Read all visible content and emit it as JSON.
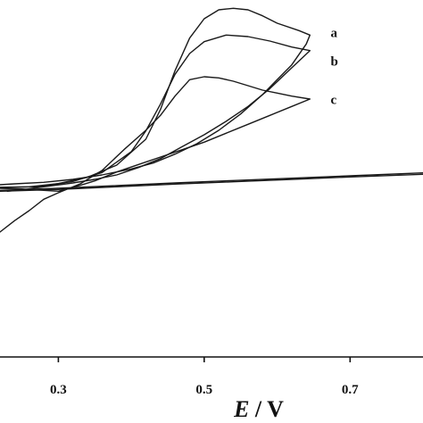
{
  "chart_data": {
    "type": "line",
    "title": "",
    "xlabel_italic": "E",
    "xlabel_unit": " / V",
    "ylabel": "",
    "xlim": [
      0.22,
      0.8
    ],
    "ylim": [
      -0.2,
      1.0
    ],
    "x_ticks": [
      {
        "value": 0.3,
        "label": "0.3"
      },
      {
        "value": 0.5,
        "label": "0.5"
      },
      {
        "value": 0.7,
        "label": "0.7"
      }
    ],
    "series": [
      {
        "name": "a",
        "label_anchor": [
          0.655,
          0.89
        ],
        "points": [
          [
            0.22,
            0.37
          ],
          [
            0.26,
            0.372
          ],
          [
            0.3,
            0.383
          ],
          [
            0.34,
            0.404
          ],
          [
            0.38,
            0.445
          ],
          [
            0.42,
            0.532
          ],
          [
            0.44,
            0.632
          ],
          [
            0.46,
            0.762
          ],
          [
            0.48,
            0.872
          ],
          [
            0.5,
            0.937
          ],
          [
            0.52,
            0.967
          ],
          [
            0.54,
            0.972
          ],
          [
            0.56,
            0.967
          ],
          [
            0.58,
            0.947
          ],
          [
            0.6,
            0.922
          ],
          [
            0.63,
            0.897
          ],
          [
            0.645,
            0.882
          ],
          [
            0.64,
            0.852
          ],
          [
            0.62,
            0.782
          ],
          [
            0.6,
            0.732
          ],
          [
            0.58,
            0.682
          ],
          [
            0.55,
            0.617
          ],
          [
            0.52,
            0.562
          ],
          [
            0.49,
            0.517
          ],
          [
            0.46,
            0.482
          ],
          [
            0.43,
            0.452
          ],
          [
            0.4,
            0.432
          ],
          [
            0.36,
            0.412
          ],
          [
            0.32,
            0.397
          ],
          [
            0.28,
            0.387
          ],
          [
            0.24,
            0.382
          ],
          [
            0.22,
            0.379
          ]
        ]
      },
      {
        "name": "b",
        "label_anchor": [
          0.655,
          0.795
        ],
        "points": [
          [
            0.22,
            0.37
          ],
          [
            0.27,
            0.372
          ],
          [
            0.32,
            0.39
          ],
          [
            0.36,
            0.42
          ],
          [
            0.4,
            0.49
          ],
          [
            0.42,
            0.56
          ],
          [
            0.44,
            0.65
          ],
          [
            0.46,
            0.75
          ],
          [
            0.48,
            0.82
          ],
          [
            0.5,
            0.86
          ],
          [
            0.53,
            0.882
          ],
          [
            0.56,
            0.877
          ],
          [
            0.59,
            0.862
          ],
          [
            0.62,
            0.842
          ],
          [
            0.645,
            0.83
          ],
          [
            0.62,
            0.772
          ],
          [
            0.59,
            0.702
          ],
          [
            0.56,
            0.642
          ],
          [
            0.53,
            0.592
          ],
          [
            0.5,
            0.547
          ],
          [
            0.47,
            0.507
          ],
          [
            0.44,
            0.467
          ],
          [
            0.41,
            0.437
          ],
          [
            0.38,
            0.412
          ],
          [
            0.35,
            0.397
          ],
          [
            0.32,
            0.385
          ],
          [
            0.28,
            0.372
          ],
          [
            0.25,
            0.362
          ],
          [
            0.23,
            0.357
          ]
        ]
      },
      {
        "name": "c",
        "label_anchor": [
          0.655,
          0.666
        ],
        "points": [
          [
            0.22,
            0.22
          ],
          [
            0.24,
            0.258
          ],
          [
            0.26,
            0.292
          ],
          [
            0.28,
            0.33
          ],
          [
            0.3,
            0.352
          ],
          [
            0.33,
            0.382
          ],
          [
            0.36,
            0.427
          ],
          [
            0.39,
            0.497
          ],
          [
            0.42,
            0.562
          ],
          [
            0.44,
            0.612
          ],
          [
            0.46,
            0.677
          ],
          [
            0.48,
            0.732
          ],
          [
            0.5,
            0.742
          ],
          [
            0.52,
            0.738
          ],
          [
            0.54,
            0.727
          ],
          [
            0.56,
            0.712
          ],
          [
            0.58,
            0.697
          ],
          [
            0.6,
            0.687
          ],
          [
            0.62,
            0.677
          ],
          [
            0.645,
            0.667
          ],
          [
            0.62,
            0.642
          ],
          [
            0.59,
            0.612
          ],
          [
            0.56,
            0.582
          ],
          [
            0.53,
            0.552
          ],
          [
            0.5,
            0.522
          ],
          [
            0.47,
            0.497
          ],
          [
            0.44,
            0.472
          ],
          [
            0.41,
            0.447
          ],
          [
            0.38,
            0.422
          ],
          [
            0.35,
            0.392
          ],
          [
            0.33,
            0.377
          ],
          [
            0.3,
            0.357
          ],
          [
            0.28,
            0.36
          ],
          [
            0.25,
            0.365
          ],
          [
            0.22,
            0.367
          ]
        ]
      },
      {
        "name": "",
        "points": [
          [
            0.22,
            0.36
          ],
          [
            0.3,
            0.367
          ],
          [
            0.38,
            0.376
          ],
          [
            0.46,
            0.385
          ],
          [
            0.54,
            0.393
          ],
          [
            0.62,
            0.401
          ],
          [
            0.7,
            0.409
          ],
          [
            0.8,
            0.419
          ]
        ]
      },
      {
        "name": "",
        "points": [
          [
            0.22,
            0.357
          ],
          [
            0.3,
            0.363
          ],
          [
            0.38,
            0.372
          ],
          [
            0.46,
            0.381
          ],
          [
            0.54,
            0.389
          ],
          [
            0.62,
            0.397
          ],
          [
            0.7,
            0.405
          ],
          [
            0.8,
            0.414
          ]
        ]
      }
    ]
  }
}
